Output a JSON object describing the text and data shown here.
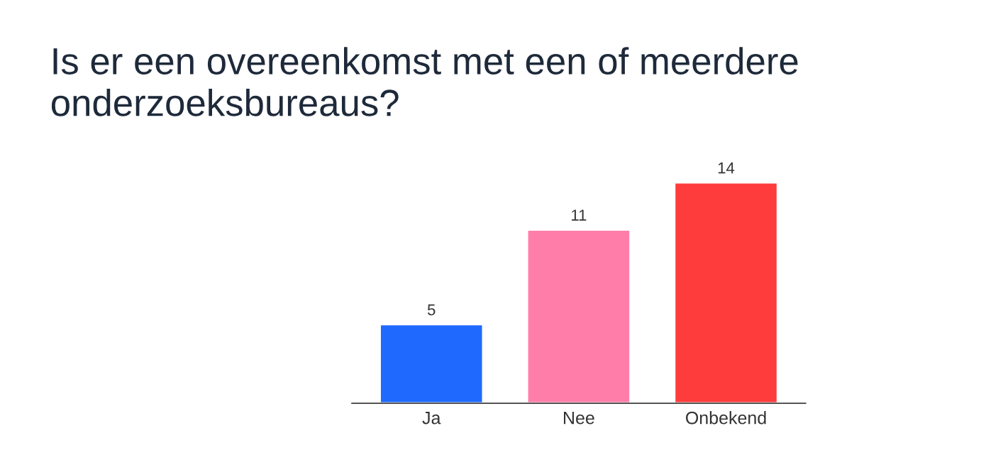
{
  "chart_data": {
    "type": "bar",
    "title": "Is er een overeenkomst met een of meerdere onderzoeksbureaus?",
    "categories": [
      "Ja",
      "Nee",
      "Onbekend"
    ],
    "values": [
      5,
      11,
      14
    ],
    "colors": [
      "#1f69fe",
      "#ff7ea9",
      "#ff3c3c"
    ],
    "data_labels": true
  }
}
